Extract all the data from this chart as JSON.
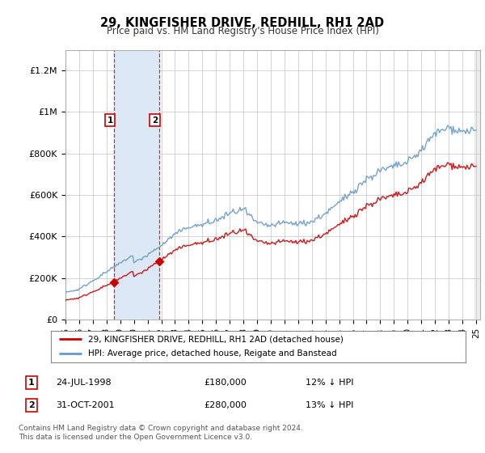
{
  "title": "29, KINGFISHER DRIVE, REDHILL, RH1 2AD",
  "subtitle": "Price paid vs. HM Land Registry's House Price Index (HPI)",
  "legend_line1": "29, KINGFISHER DRIVE, REDHILL, RH1 2AD (detached house)",
  "legend_line2": "HPI: Average price, detached house, Reigate and Banstead",
  "transaction1_label": "1",
  "transaction1_date": "24-JUL-1998",
  "transaction1_price": "£180,000",
  "transaction1_hpi": "12% ↓ HPI",
  "transaction1_year": 1998.56,
  "transaction1_value": 180000,
  "transaction2_label": "2",
  "transaction2_date": "31-OCT-2001",
  "transaction2_price": "£280,000",
  "transaction2_hpi": "13% ↓ HPI",
  "transaction2_year": 2001.83,
  "transaction2_value": 280000,
  "footer": "Contains HM Land Registry data © Crown copyright and database right 2024.\nThis data is licensed under the Open Government Licence v3.0.",
  "price_line_color": "#cc0000",
  "hpi_line_color": "#6699cc",
  "shade_color": "#dce8f5",
  "vline_color": "#cc0000",
  "ylim": [
    0,
    1300000
  ],
  "yticks": [
    0,
    200000,
    400000,
    600000,
    800000,
    1000000,
    1200000
  ],
  "ytick_labels": [
    "£0",
    "£200K",
    "£400K",
    "£600K",
    "£800K",
    "£1M",
    "£1.2M"
  ],
  "background_color": "#ffffff",
  "grid_color": "#cccccc"
}
